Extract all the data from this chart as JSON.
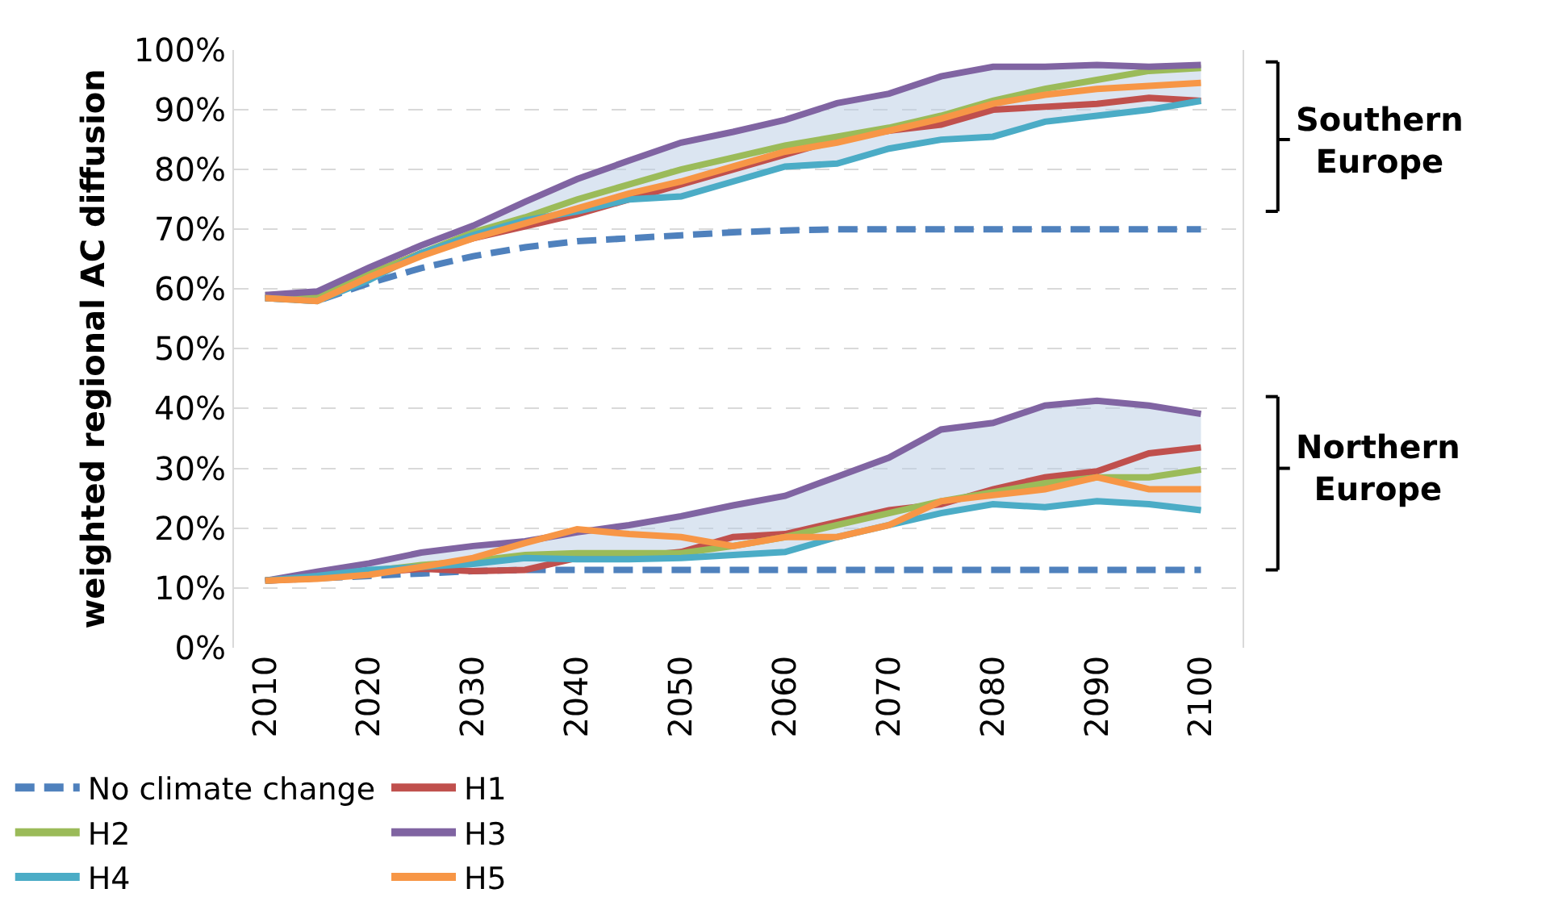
{
  "chart_data": {
    "type": "line",
    "ylabel": "weighted regional AC diffusion",
    "x": [
      2010,
      2015,
      2020,
      2025,
      2030,
      2035,
      2040,
      2045,
      2050,
      2055,
      2060,
      2065,
      2070,
      2075,
      2080,
      2085,
      2090,
      2095,
      2100,
      null,
      2010,
      2015,
      2020,
      2025,
      2030,
      2035,
      2040,
      2045,
      2050,
      2055,
      2060,
      2065,
      2070,
      2075,
      2080,
      2085,
      2090,
      2095,
      2100
    ],
    "xlim": [
      2007,
      2104
    ],
    "xticks": [
      2010,
      2020,
      2030,
      2040,
      2050,
      2060,
      2070,
      2080,
      2090,
      2100
    ],
    "ylim": [
      0,
      100
    ],
    "yticks": [
      {
        "value": 0,
        "label": "0%"
      },
      {
        "value": 10,
        "label": "10%"
      },
      {
        "value": 20,
        "label": "20%"
      },
      {
        "value": 30,
        "label": "30%"
      },
      {
        "value": 40,
        "label": "40%"
      },
      {
        "value": 50,
        "label": "50%"
      },
      {
        "value": 60,
        "label": "60%"
      },
      {
        "value": 70,
        "label": "70%"
      },
      {
        "value": 80,
        "label": "80%"
      },
      {
        "value": 90,
        "label": "90%"
      },
      {
        "value": 100,
        "label": "100%"
      }
    ],
    "grid": "y",
    "legend": "bottom",
    "marker": "none",
    "annotations": [
      "Southern Europe",
      "Northern Europe"
    ],
    "series": [
      {
        "name": "No climate change",
        "color": "#4f81bd",
        "line_style": "dashed",
        "values": [
          58.5,
          58,
          61,
          63.5,
          65.5,
          67,
          68,
          68.5,
          69,
          69.5,
          69.8,
          70,
          70,
          70,
          70,
          70,
          70,
          70,
          70,
          null,
          11.2,
          11.6,
          12,
          12.4,
          12.8,
          13,
          13,
          13,
          13,
          13,
          13,
          13,
          13,
          13,
          13,
          13,
          13,
          13,
          13
        ]
      },
      {
        "name": "H1",
        "color": "#c0504d",
        "values": [
          58.5,
          59,
          62.5,
          66,
          68.5,
          70.5,
          72.5,
          75,
          77.5,
          80,
          82.5,
          85,
          86.5,
          87.5,
          90,
          90.5,
          91,
          92,
          91.5,
          null,
          11.2,
          11.6,
          12.5,
          13.2,
          12.8,
          13,
          15,
          15.2,
          16,
          18.5,
          19,
          21,
          23,
          24,
          26.5,
          28.5,
          29.5,
          32.5,
          33.5
        ]
      },
      {
        "name": "H2",
        "color": "#9bbb59",
        "values": [
          59,
          58.5,
          62.5,
          66,
          69.5,
          72,
          75,
          77.5,
          80,
          82,
          84,
          85.5,
          87,
          89,
          91.5,
          93.5,
          95,
          96.5,
          97,
          null,
          11.2,
          12,
          12.8,
          13.8,
          14.5,
          15.5,
          15.8,
          15.8,
          15.8,
          17,
          18.5,
          20.5,
          22.5,
          24.5,
          26,
          27.5,
          28.5,
          28.5,
          29.8
        ]
      },
      {
        "name": "H3",
        "color": "#8064a2",
        "values": [
          59,
          59.6,
          63.6,
          67.3,
          70.6,
          74.6,
          78.4,
          81.5,
          84.5,
          86.3,
          88.3,
          91.1,
          92.7,
          95.6,
          97.2,
          97.2,
          97.5,
          97.2,
          97.5,
          null,
          11.2,
          12.7,
          14.1,
          15.9,
          17,
          17.8,
          19.3,
          20.5,
          22,
          23.8,
          25.4,
          28.6,
          31.8,
          36.5,
          37.6,
          40.5,
          41.3,
          40.5,
          39.1
        ],
        "lower": [
          58.5,
          58,
          61.5,
          65.5,
          68.5,
          70.5,
          72.5,
          75,
          75.5,
          78,
          80.5,
          81,
          83.5,
          85,
          85.5,
          88,
          89,
          90,
          91.5,
          null,
          11.2,
          11.5,
          12.2,
          13.2,
          12.8,
          13,
          14.8,
          14.8,
          15,
          15.5,
          16,
          18.5,
          20.5,
          22.5,
          24,
          23.5,
          24.5,
          24,
          23
        ],
        "upper": [
          59,
          59.6,
          63.6,
          67.3,
          70.6,
          74.6,
          78.4,
          81.5,
          84.5,
          86.3,
          88.3,
          91.1,
          92.7,
          95.6,
          97.2,
          97.2,
          97.5,
          97.2,
          97.5,
          null,
          11.2,
          12.7,
          14.1,
          15.9,
          17,
          17.8,
          19.3,
          20.5,
          22,
          23.8,
          25.4,
          28.6,
          31.8,
          36.5,
          37.6,
          40.5,
          41.3,
          40.5,
          39.1
        ]
      },
      {
        "name": "H4",
        "color": "#4bacc6",
        "values": [
          58.5,
          58,
          61.5,
          66,
          69,
          71.5,
          73,
          75,
          75.5,
          78,
          80.5,
          81,
          83.5,
          85,
          85.5,
          88,
          89,
          90,
          91.5,
          null,
          11.2,
          12,
          13,
          13.5,
          14,
          15,
          14.8,
          14.8,
          15,
          15.5,
          16,
          18.5,
          20.5,
          22.5,
          24,
          23.5,
          24.5,
          24,
          23
        ]
      },
      {
        "name": "H5",
        "color": "#f79646",
        "values": [
          58.5,
          58,
          62,
          65.5,
          68.5,
          71,
          73.5,
          76,
          78,
          80.5,
          83,
          84.5,
          86.5,
          88.5,
          91,
          92.5,
          93.5,
          94,
          94.5,
          null,
          11.2,
          11.5,
          12.2,
          13.5,
          15,
          17.5,
          19.8,
          19,
          18.5,
          17,
          18.5,
          18.5,
          20.5,
          24.5,
          25.5,
          26.5,
          28.5,
          26.5,
          26.5
        ]
      }
    ]
  }
}
